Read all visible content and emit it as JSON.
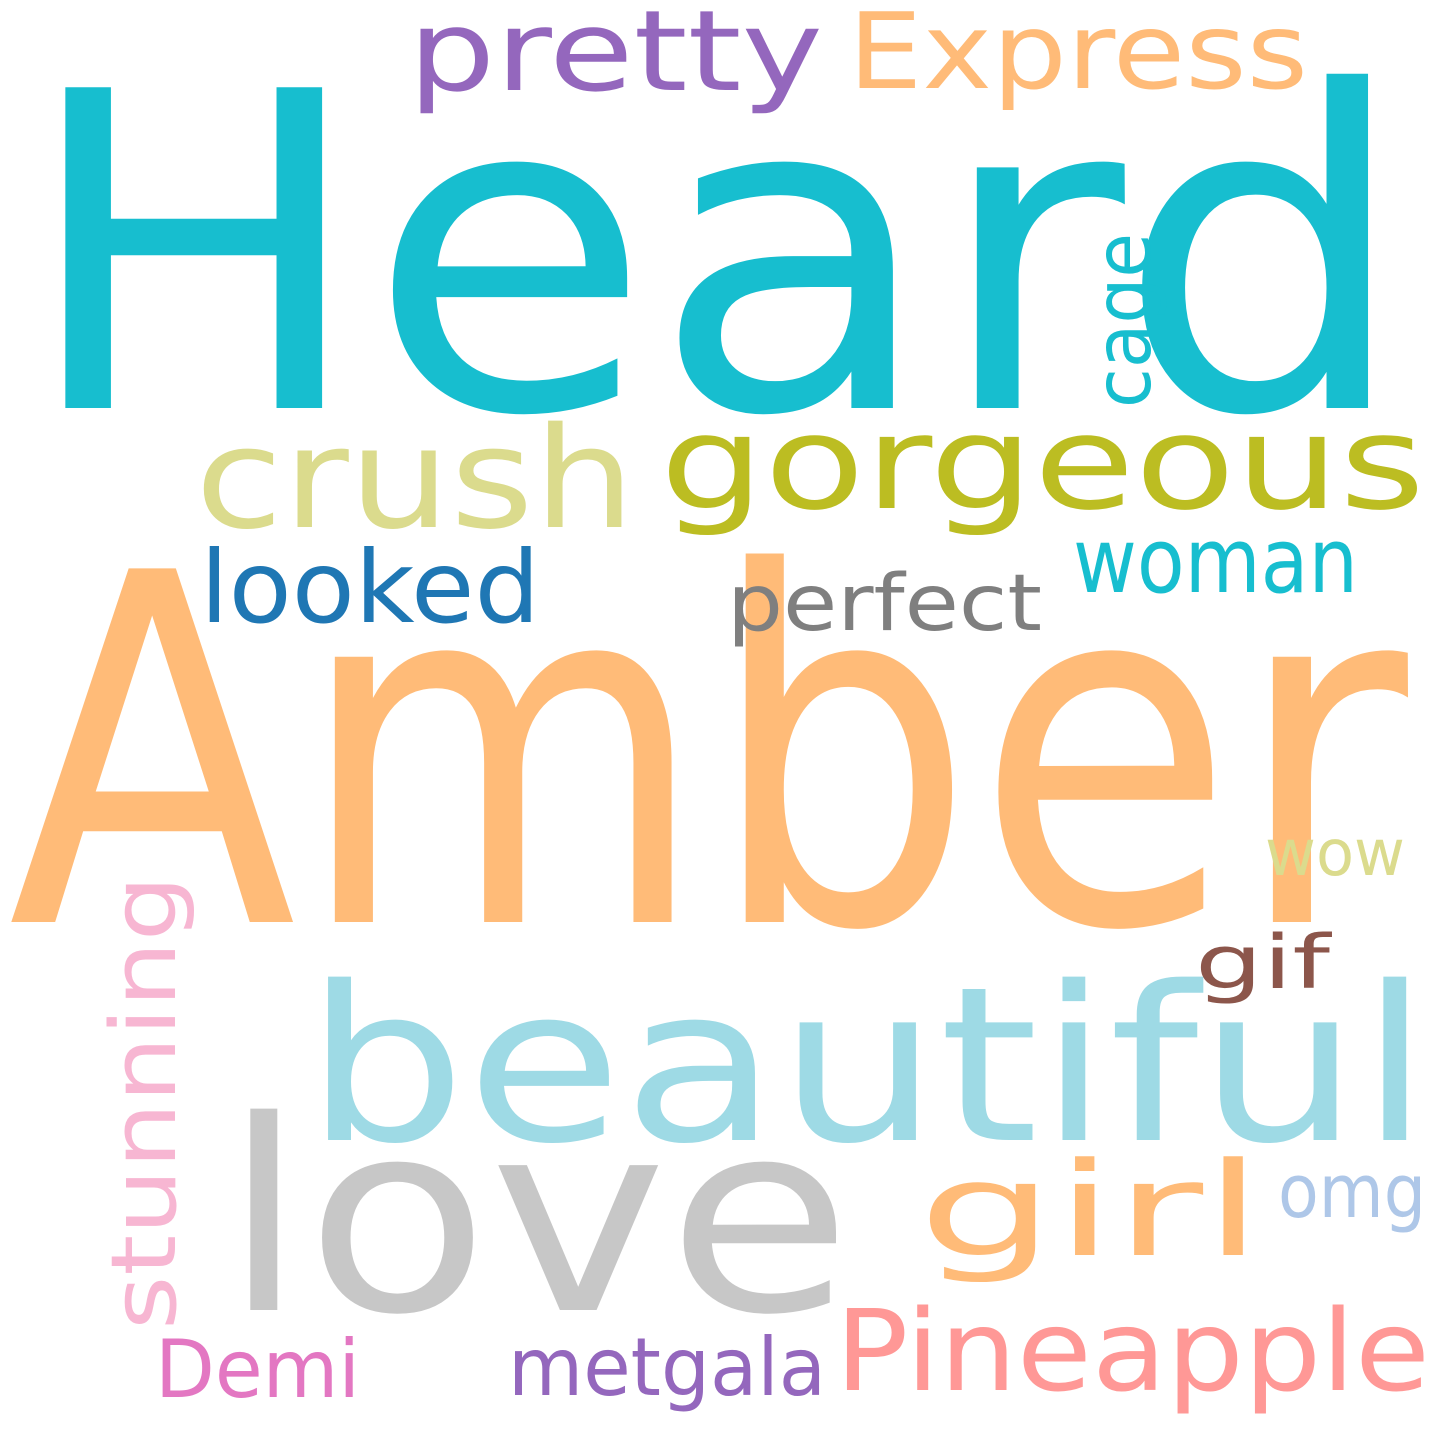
{
  "cloud": {
    "words": [
      {
        "text": "Heard",
        "color": "#17becf"
      },
      {
        "text": "Amber",
        "color": "#ffbb78"
      },
      {
        "text": "beautiful",
        "color": "#9edae5"
      },
      {
        "text": "love",
        "color": "#c7c7c7"
      },
      {
        "text": "gorgeous",
        "color": "#bcbd22"
      },
      {
        "text": "crush",
        "color": "#dbdb8d"
      },
      {
        "text": "pretty",
        "color": "#9467bd"
      },
      {
        "text": "Express",
        "color": "#ffbb78"
      },
      {
        "text": "girl",
        "color": "#ffbb78"
      },
      {
        "text": "Pineapple",
        "color": "#ff9896"
      },
      {
        "text": "looked",
        "color": "#1f77b4"
      },
      {
        "text": "woman",
        "color": "#17becf"
      },
      {
        "text": "perfect",
        "color": "#7f7f7f"
      },
      {
        "text": "cage",
        "color": "#17becf"
      },
      {
        "text": "stunning",
        "color": "#f7b6d2"
      },
      {
        "text": "wow",
        "color": "#dbdb8d"
      },
      {
        "text": "gif",
        "color": "#8c564b"
      },
      {
        "text": "omg",
        "color": "#aec7e8"
      },
      {
        "text": "Demi",
        "color": "#e377c2"
      },
      {
        "text": "metgala",
        "color": "#9467bd"
      }
    ]
  }
}
